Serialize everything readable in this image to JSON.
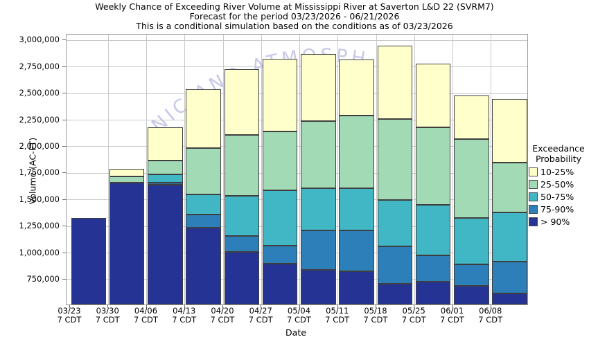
{
  "title": {
    "line1": "Weekly Chance of Exceeding River Volume at Mississippi River at Saverton L&D 22 (SVRM7)",
    "line2": "Forecast for the period 03/23/2026 - 06/21/2026",
    "line3": "This is a conditional simulation based on the conditions as of 03/23/2026"
  },
  "y_axis": {
    "title": "Volume (AC-FT)",
    "tick_labels": [
      "3,000,000",
      "2,750,000",
      "2,500,000",
      "2,250,000",
      "2,000,000",
      "1,750,000",
      "1,500,000",
      "1,250,000",
      "1,000,000",
      "750,000"
    ]
  },
  "x_axis": {
    "title": "Date",
    "tick_sub_label": "7 CDT"
  },
  "legend": {
    "title_line1": "Exceedance",
    "title_line2": "Probability",
    "items": [
      {
        "label": "10-25%",
        "color": "#FFFFCC"
      },
      {
        "label": "25-50%",
        "color": "#A1DAB4"
      },
      {
        "label": "50-75%",
        "color": "#41B6C4"
      },
      {
        "label": "75-90%",
        "color": "#2C7FB8"
      },
      {
        "label": "> 90%",
        "color": "#253494"
      }
    ]
  },
  "watermark_text": "NIC AND ATMOSPH",
  "watermark_color": "#c9c9e8",
  "chart_data": {
    "type": "bar",
    "stacked": true,
    "title": "Weekly Chance of Exceeding River Volume at Mississippi River at Saverton L&D 22 (SVRM7)",
    "xlabel": "Date",
    "ylabel": "Volume (AC-FT)",
    "ylim": [
      515000,
      3055000
    ],
    "baseline": 515000,
    "grid": true,
    "legend_position": "right",
    "y_tick_values": [
      3000000,
      2750000,
      2500000,
      2250000,
      2000000,
      1750000,
      1500000,
      1250000,
      1000000,
      750000
    ],
    "categories": [
      "03/23",
      "03/30",
      "04/06",
      "04/13",
      "04/20",
      "04/27",
      "05/04",
      "05/11",
      "05/18",
      "05/25",
      "06/01",
      "06/08"
    ],
    "category_sub_label": "7 CDT",
    "series": [
      {
        "name": "> 90%",
        "color": "#253494",
        "segment_top_acft": [
          1330000,
          1660000,
          1640000,
          1240000,
          1010000,
          900000,
          840000,
          830000,
          710000,
          730000,
          690000,
          620000
        ]
      },
      {
        "name": "75-90%",
        "color": "#2C7FB8",
        "segment_top_acft": [
          null,
          null,
          1660000,
          1360000,
          1160000,
          1070000,
          1210000,
          1210000,
          1060000,
          980000,
          890000,
          920000
        ]
      },
      {
        "name": "50-75%",
        "color": "#41B6C4",
        "segment_top_acft": [
          null,
          null,
          1740000,
          1550000,
          1540000,
          1590000,
          1610000,
          1610000,
          1500000,
          1450000,
          1330000,
          1380000
        ]
      },
      {
        "name": "25-50%",
        "color": "#A1DAB4",
        "segment_top_acft": [
          null,
          1720000,
          1870000,
          1990000,
          2110000,
          2140000,
          2240000,
          2290000,
          2260000,
          2180000,
          2070000,
          1850000
        ]
      },
      {
        "name": "10-25%",
        "color": "#FFFFCC",
        "segment_top_acft": [
          null,
          1790000,
          2180000,
          2540000,
          2730000,
          2830000,
          2870000,
          2820000,
          2950000,
          2780000,
          2480000,
          2450000
        ]
      }
    ]
  }
}
